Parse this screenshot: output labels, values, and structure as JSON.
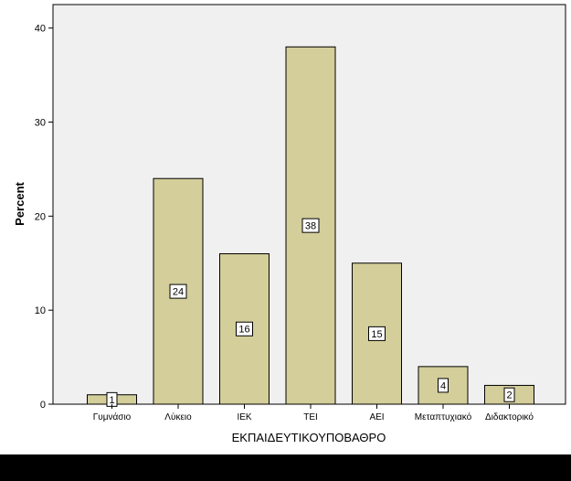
{
  "chart_data": {
    "type": "bar",
    "categories": [
      "Γυμνάσιο",
      "Λύκειο",
      "ΙΕΚ",
      "ΤΕΙ",
      "ΑΕΙ",
      "Μεταπτυχιακό",
      "Διδακτορικό"
    ],
    "values": [
      1,
      24,
      16,
      38,
      15,
      4,
      2
    ],
    "data_labels": [
      "1",
      "24",
      "16",
      "38",
      "15",
      "4",
      "2"
    ],
    "xlabel": "ΕΚΠΑΙΔΕΥΤΙΚΟΥΠΟΒΑΘΡΟ",
    "ylabel": "Percent",
    "yticks": [
      0,
      10,
      20,
      30,
      40
    ],
    "ytick_labels": [
      "0",
      "10",
      "20",
      "30",
      "40"
    ],
    "ylim": [
      0,
      42.5
    ],
    "grid": false,
    "legend": "none",
    "bar_color": "#d3ce9a",
    "plot_background": "#f0f0f0"
  }
}
